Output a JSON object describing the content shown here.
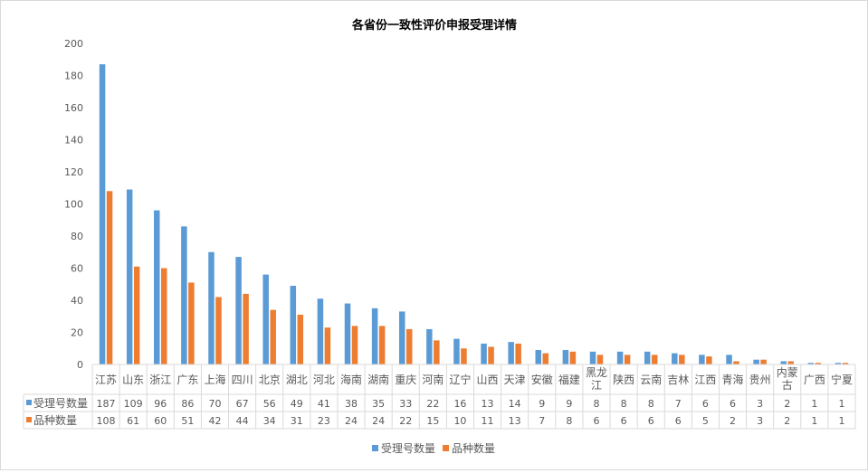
{
  "chart_data": {
    "type": "bar",
    "title": "各省份一致性评价申报受理详情",
    "categories": [
      "江苏",
      "山东",
      "浙江",
      "广东",
      "上海",
      "四川",
      "北京",
      "湖北",
      "河北",
      "海南",
      "湖南",
      "重庆",
      "河南",
      "辽宁",
      "山西",
      "天津",
      "安徽",
      "福建",
      "黑龙江",
      "陕西",
      "云南",
      "吉林",
      "江西",
      "青海",
      "贵州",
      "内蒙古",
      "广西",
      "宁夏"
    ],
    "series": [
      {
        "name": "受理号数量",
        "color": "#5b9bd5",
        "values": [
          187,
          109,
          96,
          86,
          70,
          67,
          56,
          49,
          41,
          38,
          35,
          33,
          22,
          16,
          13,
          14,
          9,
          9,
          8,
          8,
          8,
          7,
          6,
          6,
          3,
          2,
          1,
          1
        ]
      },
      {
        "name": "品种数量",
        "color": "#ed7d31",
        "values": [
          108,
          61,
          60,
          51,
          42,
          44,
          34,
          31,
          23,
          24,
          24,
          22,
          15,
          10,
          11,
          13,
          7,
          8,
          6,
          6,
          6,
          6,
          5,
          2,
          3,
          2,
          1,
          1
        ]
      }
    ],
    "y_ticks": [
      "0",
      "20",
      "40",
      "60",
      "80",
      "100",
      "120",
      "140",
      "160",
      "180",
      "200"
    ],
    "ylim": [
      0,
      200
    ],
    "grid": false,
    "legend": "bottom",
    "data_table": true
  }
}
